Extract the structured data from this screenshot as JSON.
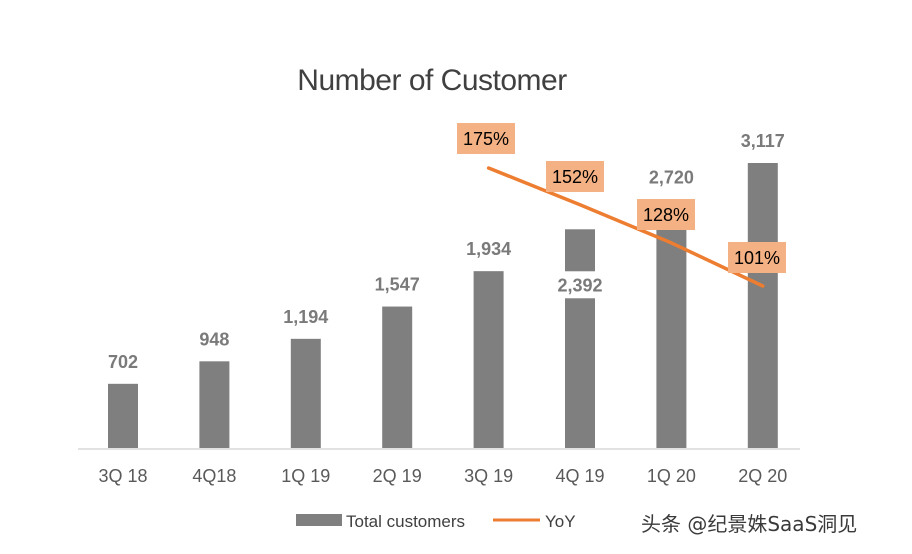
{
  "chart_data": {
    "type": "bar",
    "title": "Number of Customer",
    "categories": [
      "3Q 18",
      "4Q18",
      "1Q 19",
      "2Q 19",
      "3Q 19",
      "4Q 19",
      "1Q 20",
      "2Q 20"
    ],
    "series": [
      {
        "name": "Total customers",
        "type": "bar",
        "values": [
          702,
          948,
          1194,
          1547,
          1934,
          2392,
          2720,
          3117
        ],
        "labels": [
          "702",
          "948",
          "1,194",
          "1,547",
          "1,934",
          "2,392",
          "2,720",
          "3,117"
        ]
      },
      {
        "name": "YoY",
        "type": "line",
        "values": [
          null,
          null,
          null,
          null,
          175,
          152,
          128,
          101
        ],
        "labels": [
          "",
          "",
          "",
          "",
          "175%",
          "152%",
          "128%",
          "101%"
        ]
      }
    ],
    "ylim": [
      0,
      3117
    ],
    "xlabel": "",
    "ylabel": "",
    "legend": "bottom-center"
  },
  "colors": {
    "bar": "#7f7f7f",
    "line": "#ed7d31",
    "label_box": "#f4b183",
    "axis": "#d9d9d9"
  },
  "watermark": "头条 @纪景姝SaaS洞见"
}
